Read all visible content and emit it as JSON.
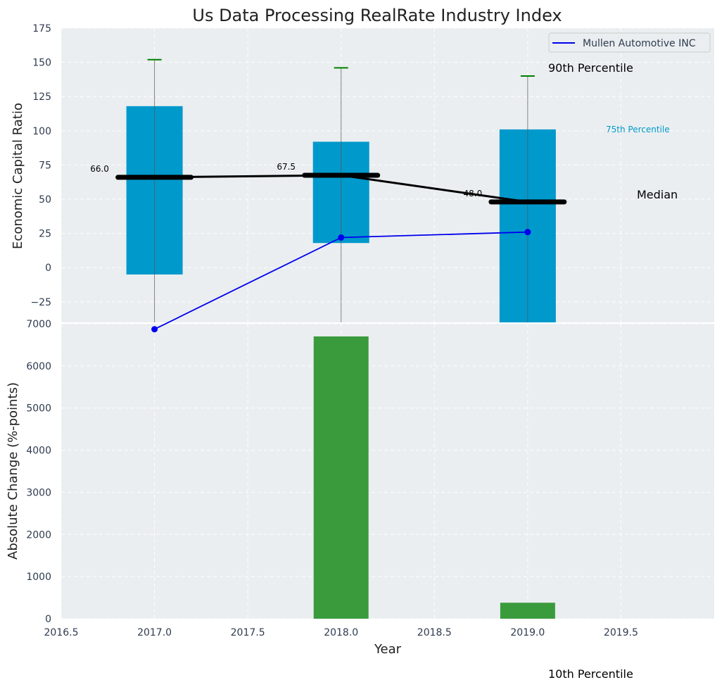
{
  "chart_data": [
    {
      "type": "box-line",
      "title": "Us Data Processing RealRate Industry Index",
      "ylabel": "Economic Capital Ratio",
      "ylim": [
        -40,
        175
      ],
      "yticks": [
        -25,
        0,
        25,
        50,
        75,
        100,
        125,
        150,
        175
      ],
      "ytick_labels": [
        "−25",
        "0",
        "25",
        "50",
        "75",
        "100",
        "125",
        "150",
        "175"
      ],
      "x": [
        2017,
        2018,
        2019
      ],
      "boxes": [
        {
          "year": 2017,
          "p25": -5,
          "p75": 118,
          "median": 66.0,
          "p90": 152,
          "median_label": "66.0"
        },
        {
          "year": 2018,
          "p25": 18,
          "p75": 92,
          "median": 67.5,
          "p90": 146,
          "median_label": "67.5"
        },
        {
          "year": 2019,
          "p25": -40,
          "p75": 101,
          "median": 48.0,
          "p90": 140,
          "median_label": "48.0"
        }
      ],
      "series": [
        {
          "name": "Mullen Automotive INC",
          "color": "#0000ee",
          "values": [
            -45,
            22,
            26
          ]
        }
      ],
      "legend": {
        "label": "Mullen Automotive INC",
        "position": "top-right"
      },
      "annotations": {
        "p90": "90th Percentile",
        "p75": "75th Percentile",
        "median": "Median",
        "p10": "10th Percentile"
      },
      "colors": {
        "box": "#0099cc",
        "median": "#000000",
        "whisker_cap": "#008000",
        "panel_bg": "#eaeef0"
      }
    },
    {
      "type": "bar",
      "ylabel": "Absolute Change (%-points)",
      "xlabel": "Year",
      "ylim": [
        0,
        7000
      ],
      "yticks": [
        0,
        1000,
        2000,
        3000,
        4000,
        5000,
        6000,
        7000
      ],
      "xlim": [
        2016.5,
        2020.0
      ],
      "xticks": [
        2016.5,
        2017.0,
        2017.5,
        2018.0,
        2018.5,
        2019.0,
        2019.5
      ],
      "xtick_labels": [
        "2016.5",
        "2017.0",
        "2017.5",
        "2018.0",
        "2018.5",
        "2019.0",
        "2019.5"
      ],
      "categories": [
        2018,
        2019
      ],
      "values": [
        6700,
        380
      ],
      "colors": {
        "bar": "#3a9b3d"
      }
    }
  ]
}
